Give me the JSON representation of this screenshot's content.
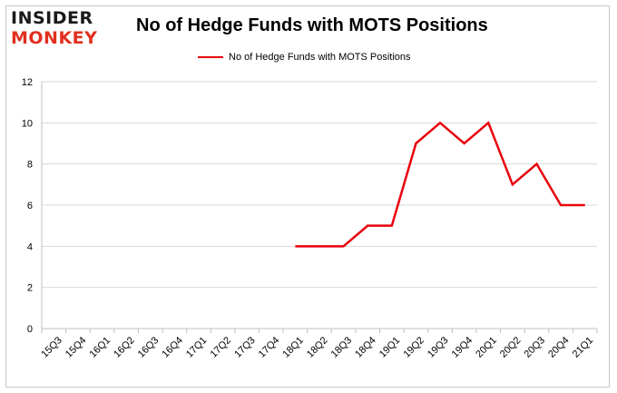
{
  "logo": {
    "line1": "INSIDER",
    "line2": "MONKEY"
  },
  "colors": {
    "series": "#e8000b",
    "grid": "#d9d9d9",
    "logo_accent": "#e0301e"
  },
  "chart_data": {
    "type": "line",
    "title": "No of Hedge Funds with MOTS Positions",
    "xlabel": "",
    "ylabel": "",
    "ylim": [
      0,
      12
    ],
    "yticks": [
      0,
      2,
      4,
      6,
      8,
      10,
      12
    ],
    "grid": true,
    "legend": "top",
    "categories": [
      "15Q3",
      "15Q4",
      "16Q1",
      "16Q2",
      "16Q3",
      "16Q4",
      "17Q1",
      "17Q2",
      "17Q3",
      "17Q4",
      "18Q1",
      "18Q2",
      "18Q3",
      "18Q4",
      "19Q1",
      "19Q2",
      "19Q3",
      "19Q4",
      "20Q1",
      "20Q2",
      "20Q3",
      "20Q4",
      "21Q1"
    ],
    "series": [
      {
        "name": "No of Hedge Funds with MOTS Positions",
        "color": "#e8000b",
        "values": [
          null,
          null,
          null,
          null,
          null,
          null,
          null,
          null,
          null,
          null,
          4,
          4,
          4,
          5,
          5,
          9,
          10,
          9,
          10,
          7,
          8,
          6,
          6
        ]
      }
    ]
  }
}
